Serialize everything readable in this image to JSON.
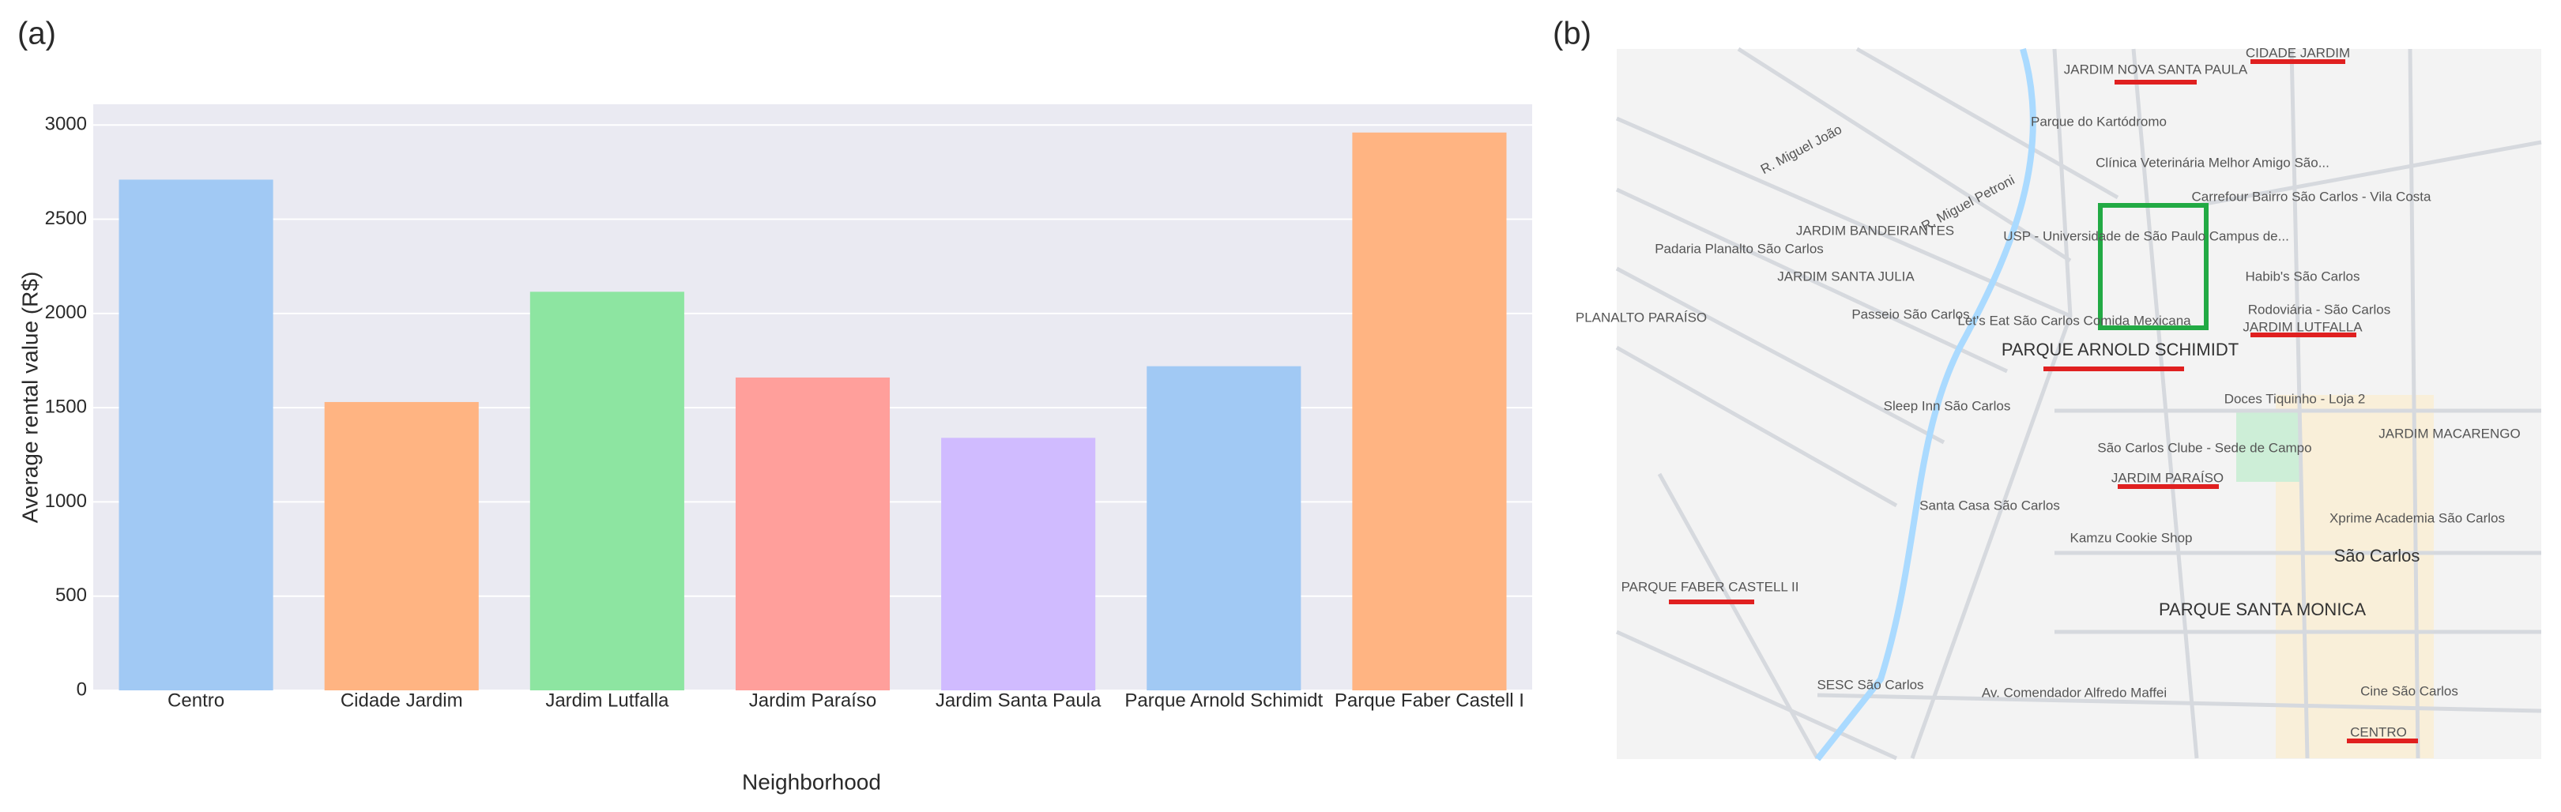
{
  "chart_data": {
    "type": "bar",
    "panel_label": "(a)",
    "x_label": "Neighborhood",
    "y_label": "Average rental value (R$)",
    "categories": [
      "Centro",
      "Cidade Jardim",
      "Jardim Lutfalla",
      "Jardim Paraíso",
      "Jardim Santa Paula",
      "Parque Arnold Schimidt",
      "Parque Faber Castell I"
    ],
    "values": [
      2710,
      1530,
      2115,
      1660,
      1340,
      1720,
      2960
    ],
    "colors": [
      "#a1c9f4",
      "#ffb482",
      "#8de5a1",
      "#ff9f9b",
      "#d0bbff",
      "#a1c9f4",
      "#ffb482"
    ],
    "ylim": [
      0,
      3110
    ],
    "yticks": [
      0,
      500,
      1000,
      1500,
      2000,
      2500,
      3000
    ],
    "grid": true
  },
  "map": {
    "panel_label": "(b)",
    "labels": [
      "JARDIM NOVA SANTA PAULA",
      "CIDADE JARDIM",
      "Parque do Kartódromo",
      "Clínica Veterinária Melhor Amigo São...",
      "Carrefour Bairro São Carlos - Vila Costa",
      "USP - Universidade de São Paulo Campus de...",
      "Padaria Planalto São Carlos",
      "Habib's São Carlos",
      "JARDIM BANDEIRANTES",
      "JARDIM SANTA JULIA",
      "Passeio São Carlos",
      "Let's Eat São Carlos Comida Mexicana",
      "Rodoviária - São Carlos",
      "JARDIM LUTFALLA",
      "PARQUE ARNOLD SCHIMIDT",
      "Sleep Inn São Carlos",
      "Doces Tiquinho - Loja 2",
      "São Carlos Clube - Sede de Campo",
      "JARDIM MACARENGO",
      "JARDIM PARAÍSO",
      "Santa Casa São Carlos",
      "Kamzu Cookie Shop",
      "Xprime Academia São Carlos",
      "São Carlos",
      "PARQUE SANTA MONICA",
      "PARQUE FABER CASTELL II",
      "SESC São Carlos",
      "Av. Comendador Alfredo Maffei",
      "Cine São Carlos",
      "CENTRO",
      "PLANALTO PARAÍSO",
      "R. Miguel Petroni",
      "R. Miguel João"
    ]
  }
}
